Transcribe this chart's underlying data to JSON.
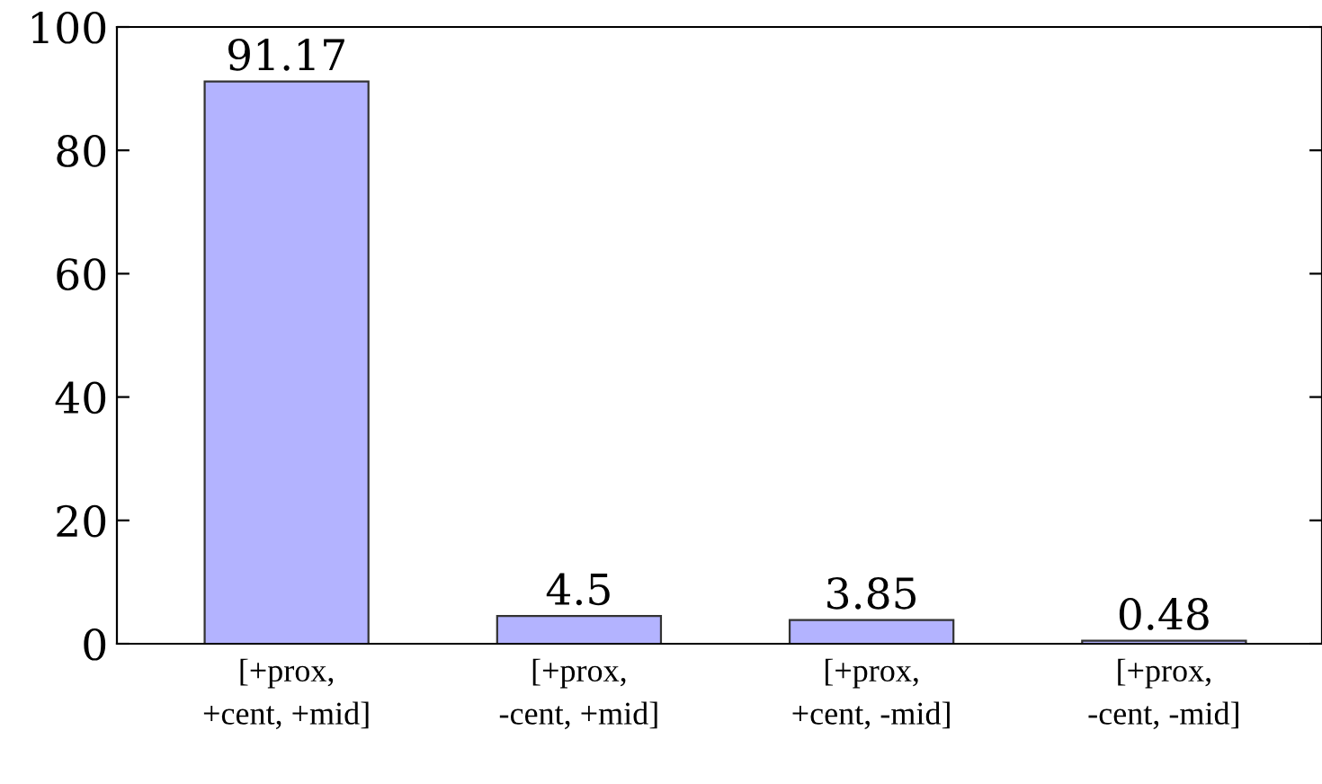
{
  "chart_data": {
    "type": "bar",
    "categories": [
      "[+prox,\n+cent, +mid]",
      "[+prox,\n-cent, +mid]",
      "[+prox,\n+cent, -mid]",
      "[+prox,\n-cent, -mid]"
    ],
    "values": [
      91.17,
      4.5,
      3.85,
      0.48
    ],
    "color": "#b3b3ff",
    "ylim": [
      0,
      100
    ],
    "yticks": [
      0,
      20,
      40,
      60,
      80,
      100
    ],
    "data_labels": true,
    "grid": false
  }
}
